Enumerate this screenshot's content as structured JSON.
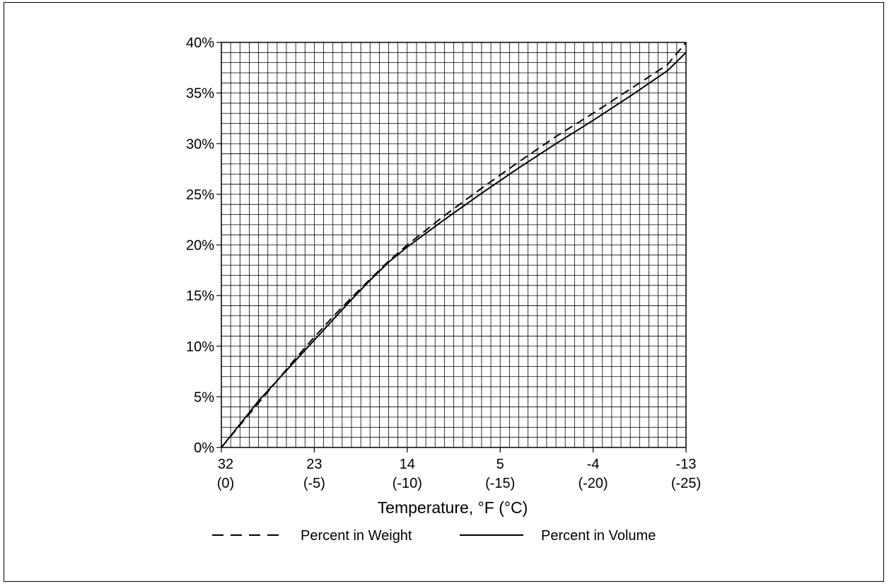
{
  "chart_data": {
    "type": "line",
    "xlabel": "Temperature, °F (°C)",
    "ylabel": "",
    "x_ticks_f": [
      "32",
      "23",
      "14",
      "5",
      "-4",
      "-13"
    ],
    "x_ticks_c": [
      "(0)",
      "(-5)",
      "(-10)",
      "(-15)",
      "(-20)",
      "(-25)"
    ],
    "x_tick_values": [
      0,
      -5,
      -10,
      -15,
      -20,
      -25
    ],
    "y_ticks": [
      "0%",
      "5%",
      "10%",
      "15%",
      "20%",
      "25%",
      "30%",
      "35%",
      "40%"
    ],
    "y_tick_values": [
      0,
      5,
      10,
      15,
      20,
      25,
      30,
      35,
      40
    ],
    "xlim": [
      0,
      -25
    ],
    "ylim": [
      0,
      40
    ],
    "grid": true,
    "legend_position": "bottom",
    "series": [
      {
        "name": "Percent in Weight",
        "style": "dashed",
        "x": [
          0,
          -1,
          -2,
          -3,
          -4,
          -5,
          -6,
          -7,
          -8,
          -9,
          -10,
          -12,
          -14,
          -16,
          -18,
          -20,
          -22,
          -24,
          -25
        ],
        "y": [
          0,
          2.2,
          4.4,
          6.6,
          8.8,
          10.9,
          12.9,
          14.8,
          16.6,
          18.4,
          20.0,
          22.9,
          25.6,
          28.2,
          30.7,
          33.0,
          35.4,
          37.8,
          40.0
        ]
      },
      {
        "name": "Percent in Volume",
        "style": "solid",
        "x": [
          0,
          -1,
          -2,
          -3,
          -4,
          -5,
          -6,
          -7,
          -8,
          -9,
          -10,
          -12,
          -14,
          -16,
          -18,
          -20,
          -22,
          -24,
          -25
        ],
        "y": [
          0,
          2.3,
          4.6,
          6.6,
          8.6,
          10.6,
          12.6,
          14.6,
          16.5,
          18.3,
          19.8,
          22.5,
          25.1,
          27.6,
          30.0,
          32.3,
          34.7,
          37.2,
          39.0
        ]
      }
    ]
  }
}
